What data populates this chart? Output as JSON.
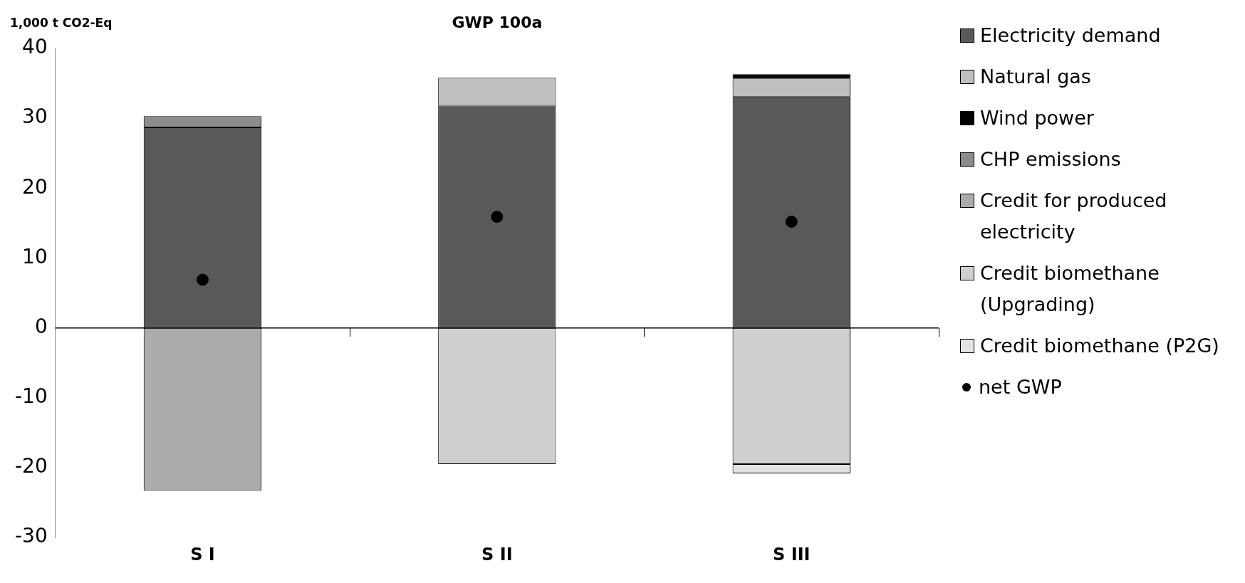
{
  "chart_data": {
    "type": "bar",
    "title": "GWP 100a",
    "ylabel": "1,000 t CO2-Eq",
    "categories": [
      "S I",
      "S II",
      "S III"
    ],
    "stacked": true,
    "series": [
      {
        "name": "Electricity demand",
        "color": "#595959",
        "values": [
          28.7,
          31.8,
          33.1
        ]
      },
      {
        "name": "Natural gas",
        "color": "#bfbfbf",
        "values": [
          null,
          4.0,
          2.6
        ]
      },
      {
        "name": "Wind power",
        "color": "#000000",
        "values": [
          null,
          null,
          0.6
        ]
      },
      {
        "name": "CHP emissions",
        "color": "#8c8c8c",
        "values": [
          1.6,
          null,
          null
        ]
      },
      {
        "name": "Credit for produced electricity",
        "color": "#ababab",
        "values": [
          -23.3,
          null,
          null
        ]
      },
      {
        "name": "Credit biomethane (Upgrading)",
        "color": "#cfcfcf",
        "values": [
          null,
          -19.5,
          -19.5
        ]
      },
      {
        "name": "Credit biomethane (P2G)",
        "color": "#e3e3e3",
        "values": [
          null,
          null,
          -1.3
        ]
      },
      {
        "name": "net GWP",
        "type": "scatter",
        "color": "#000000",
        "x": [
          "S I",
          "S II",
          "S III"
        ],
        "values": [
          6.9,
          15.9,
          15.2
        ],
        "marker": "circle"
      }
    ],
    "ylim": [
      -30,
      40
    ],
    "yticks": [
      -30,
      -20,
      -10,
      0,
      10,
      20,
      30,
      40
    ],
    "ref_lines": [
      {
        "axis": "y",
        "value": 0,
        "color": "#000000"
      }
    ],
    "grid": false,
    "legend": "right"
  }
}
